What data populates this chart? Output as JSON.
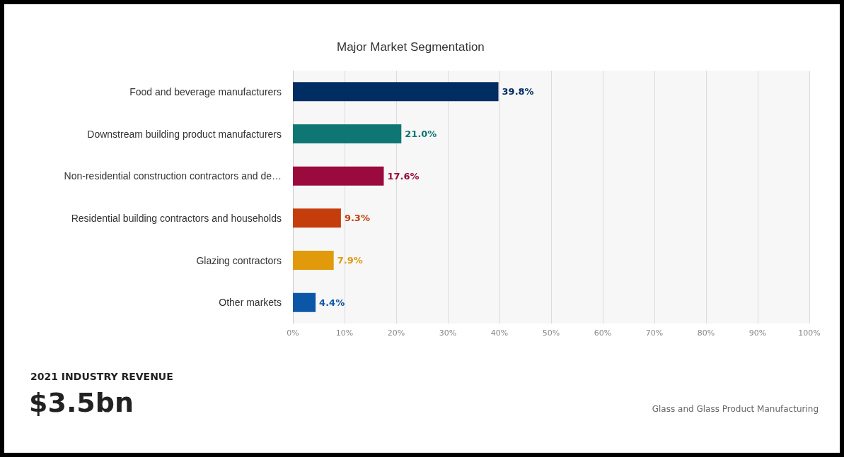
{
  "chart_data": {
    "type": "bar",
    "orientation": "horizontal",
    "title": "Major Market Segmentation",
    "categories": [
      "Food and beverage manufacturers",
      "Downstream building product manufacturers",
      "Non-residential construction contractors and de…",
      "Residential building contractors and households",
      "Glazing contractors",
      "Other markets"
    ],
    "values": [
      39.8,
      21.0,
      17.6,
      9.3,
      7.9,
      4.4
    ],
    "colors": [
      "#002d62",
      "#0e7773",
      "#9b0a3d",
      "#c43d0a",
      "#e09a0c",
      "#0b56a6"
    ],
    "value_labels": [
      "39.8%",
      "21.0%",
      "17.6%",
      "9.3%",
      "7.9%",
      "4.4%"
    ],
    "xlim": [
      0,
      100
    ],
    "xticks": [
      {
        "value": 0,
        "label": "0%"
      },
      {
        "value": 10,
        "label": "10%"
      },
      {
        "value": 20,
        "label": "20%"
      },
      {
        "value": 30,
        "label": "30%"
      },
      {
        "value": 40,
        "label": "40%"
      },
      {
        "value": 50,
        "label": "50%"
      },
      {
        "value": 60,
        "label": "60%"
      },
      {
        "value": 70,
        "label": "70%"
      },
      {
        "value": 80,
        "label": "80%"
      },
      {
        "value": 90,
        "label": "90%"
      },
      {
        "value": 100,
        "label": "100%"
      }
    ],
    "grid": "x",
    "annotations": [
      "2021 INDUSTRY REVENUE",
      "$3.5bn",
      "Glass and Glass Product Manufacturing"
    ]
  }
}
